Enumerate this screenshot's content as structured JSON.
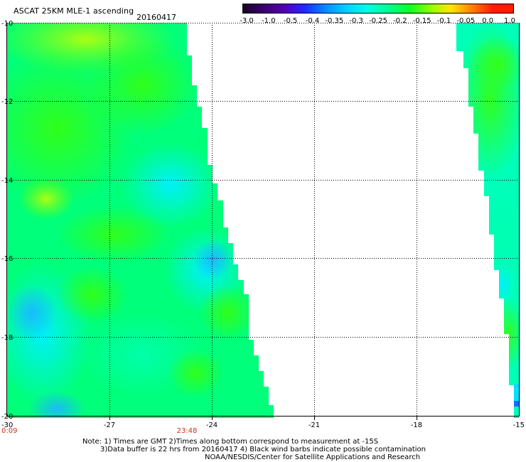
{
  "title": "ASCAT 25KM MLE-1 ascending",
  "date": "20160417",
  "colorbar": {
    "labels": [
      "-3.0",
      "-1.0",
      "-0.5",
      "-0.4",
      "-0.35",
      "-0.3",
      "-0.25",
      "-0.2",
      "-0.15",
      "-0.1",
      "-0.05",
      "0.0",
      "1.0"
    ],
    "colors": [
      "#1a0029",
      "#3a006e",
      "#5500b8",
      "#1f2bff",
      "#0091ff",
      "#00d2ff",
      "#00ffe4",
      "#00ff8c",
      "#10ff28",
      "#8cff00",
      "#ffe600",
      "#ff8000",
      "#ff1e00"
    ]
  },
  "axes": {
    "x_ticks": [
      "-30",
      "-27",
      "-24",
      "-21",
      "-18",
      "-15"
    ],
    "y_ticks": [
      "-10",
      "-12",
      "-14",
      "-16",
      "-18",
      "-20"
    ],
    "lon_range": [
      -30,
      -15
    ],
    "lat_range": [
      -20,
      -10
    ],
    "grid": "dotted"
  },
  "times": {
    "left": "0:09",
    "mid": "23:48"
  },
  "footer": {
    "line1": "Note: 1) Times are GMT 2)Times along bottom correspond to measurement at -15S",
    "line2": "3)Data buffer is 22 hrs from 20160417 4) Black wind barbs indicate possible contamination",
    "line3": "NOAA/NESDIS/Center for Satellite Applications and Research"
  }
}
